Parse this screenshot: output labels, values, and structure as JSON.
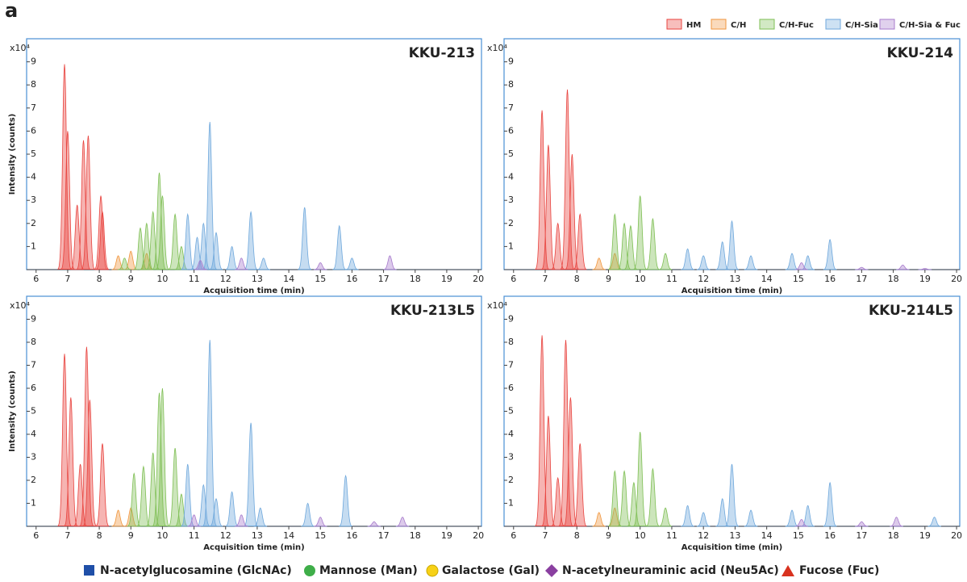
{
  "panel_label": "a",
  "glycan_legend": [
    "N-acetylglucosamine (GlcNAc)",
    "Mannose (Man)",
    "Galactose (Gal)",
    "N-acetylneuraminic acid (Neu5Ac)",
    "Fucose (Fuc)"
  ],
  "chart_data": [
    {
      "type": "area",
      "title": "KKU-213",
      "y_multiplier": "x10⁴",
      "y_label": "Intensity (counts)",
      "x_label": "Acquisition time (min)",
      "xlim": [
        5.7,
        20.1
      ],
      "ylim": [
        0,
        10
      ],
      "xticks": [
        6,
        7,
        8,
        9,
        10,
        11,
        12,
        13,
        14,
        15,
        16,
        17,
        18,
        19,
        20
      ],
      "yticks": [
        1,
        2,
        3,
        4,
        5,
        6,
        7,
        8,
        9
      ],
      "series": [
        {
          "name": "HM",
          "color": "#e8443f",
          "x": [
            6.9,
            7.0,
            7.3,
            7.5,
            7.65,
            8.05,
            8.1
          ],
          "values": [
            8.9,
            6.0,
            2.8,
            5.6,
            5.8,
            3.2,
            2.5
          ]
        },
        {
          "name": "C/H",
          "color": "#f0963e",
          "x": [
            8.6,
            9.0,
            9.5
          ],
          "values": [
            0.6,
            0.8,
            0.7
          ]
        },
        {
          "name": "C/H-Fuc",
          "color": "#7fbf55",
          "x": [
            8.8,
            9.3,
            9.5,
            9.7,
            9.9,
            10.0,
            10.4,
            10.6
          ],
          "values": [
            0.5,
            1.8,
            2.0,
            2.5,
            4.2,
            3.2,
            2.4,
            1.0
          ]
        },
        {
          "name": "C/H-Sia",
          "color": "#6fa8dc",
          "x": [
            10.8,
            11.1,
            11.3,
            11.5,
            11.7,
            12.2,
            12.8,
            13.2,
            14.5,
            15.6,
            16.0
          ],
          "values": [
            2.4,
            1.4,
            2.0,
            6.4,
            1.6,
            1.0,
            2.5,
            0.5,
            2.7,
            1.9,
            0.5
          ]
        },
        {
          "name": "C/H-Sia & Fuc",
          "color": "#a77bcc",
          "x": [
            11.2,
            12.5,
            15.0,
            17.2
          ],
          "values": [
            0.4,
            0.5,
            0.3,
            0.6
          ]
        }
      ]
    },
    {
      "type": "area",
      "title": "KKU-214",
      "y_multiplier": "x10⁴",
      "x_label": "Acquisition time (min)",
      "xlim": [
        5.7,
        20.1
      ],
      "ylim": [
        0,
        10
      ],
      "xticks": [
        6,
        7,
        8,
        9,
        10,
        11,
        12,
        13,
        14,
        15,
        16,
        17,
        18,
        19,
        20
      ],
      "yticks": [
        1,
        2,
        3,
        4,
        5,
        6,
        7,
        8,
        9
      ],
      "series": [
        {
          "name": "HM",
          "color": "#e8443f",
          "x": [
            6.9,
            7.1,
            7.4,
            7.7,
            7.85,
            8.1
          ],
          "values": [
            6.9,
            5.4,
            2.0,
            7.8,
            5.0,
            2.4
          ]
        },
        {
          "name": "C/H",
          "color": "#f0963e",
          "x": [
            8.7,
            9.2
          ],
          "values": [
            0.5,
            0.7
          ]
        },
        {
          "name": "C/H-Fuc",
          "color": "#7fbf55",
          "x": [
            9.2,
            9.5,
            9.7,
            10.0,
            10.4,
            10.8
          ],
          "values": [
            2.4,
            2.0,
            1.9,
            3.2,
            2.2,
            0.7
          ]
        },
        {
          "name": "C/H-Sia",
          "color": "#6fa8dc",
          "x": [
            11.5,
            12.0,
            12.6,
            12.9,
            13.5,
            14.8,
            15.3,
            16.0
          ],
          "values": [
            0.9,
            0.6,
            1.2,
            2.1,
            0.6,
            0.7,
            0.6,
            1.3
          ]
        },
        {
          "name": "C/H-Sia & Fuc",
          "color": "#a77bcc",
          "x": [
            15.1,
            17.0,
            18.3,
            19.0
          ],
          "values": [
            0.3,
            0.1,
            0.2,
            0.05
          ]
        }
      ]
    },
    {
      "type": "area",
      "title": "KKU-213L5",
      "y_multiplier": "x10⁴",
      "y_label": "Intensity (counts)",
      "x_label": "Acquisition time (min)",
      "xlim": [
        5.7,
        20.1
      ],
      "ylim": [
        0,
        10
      ],
      "xticks": [
        6,
        7,
        8,
        9,
        10,
        11,
        12,
        13,
        14,
        15,
        16,
        17,
        18,
        19,
        20
      ],
      "yticks": [
        1,
        2,
        3,
        4,
        5,
        6,
        7,
        8,
        9
      ],
      "series": [
        {
          "name": "HM",
          "color": "#e8443f",
          "x": [
            6.9,
            7.1,
            7.4,
            7.6,
            7.7,
            8.1
          ],
          "values": [
            7.5,
            5.6,
            2.7,
            7.8,
            5.5,
            3.6
          ]
        },
        {
          "name": "C/H",
          "color": "#f0963e",
          "x": [
            8.6,
            9.0
          ],
          "values": [
            0.7,
            0.8
          ]
        },
        {
          "name": "C/H-Fuc",
          "color": "#7fbf55",
          "x": [
            9.1,
            9.4,
            9.7,
            9.9,
            10.0,
            10.4,
            10.6
          ],
          "values": [
            2.3,
            2.6,
            3.2,
            5.8,
            6.0,
            3.4,
            1.4
          ]
        },
        {
          "name": "C/H-Sia",
          "color": "#6fa8dc",
          "x": [
            10.8,
            11.3,
            11.5,
            11.7,
            12.2,
            12.8,
            13.1,
            14.6,
            15.8
          ],
          "values": [
            2.7,
            1.8,
            8.1,
            1.2,
            1.5,
            4.5,
            0.8,
            1.0,
            2.2
          ]
        },
        {
          "name": "C/H-Sia & Fuc",
          "color": "#a77bcc",
          "x": [
            11.0,
            12.5,
            15.0,
            16.7,
            17.6
          ],
          "values": [
            0.5,
            0.5,
            0.4,
            0.2,
            0.4
          ]
        }
      ]
    },
    {
      "type": "area",
      "title": "KKU-214L5",
      "y_multiplier": "x10⁴",
      "x_label": "Acquisition time (min)",
      "xlim": [
        5.7,
        20.1
      ],
      "ylim": [
        0,
        10
      ],
      "xticks": [
        6,
        7,
        8,
        9,
        10,
        11,
        12,
        13,
        14,
        15,
        16,
        17,
        18,
        19,
        20
      ],
      "yticks": [
        1,
        2,
        3,
        4,
        5,
        6,
        7,
        8,
        9
      ],
      "series": [
        {
          "name": "HM",
          "color": "#e8443f",
          "x": [
            6.9,
            7.1,
            7.4,
            7.65,
            7.8,
            8.1
          ],
          "values": [
            8.3,
            4.8,
            2.1,
            8.1,
            5.6,
            3.6
          ]
        },
        {
          "name": "C/H",
          "color": "#f0963e",
          "x": [
            8.7,
            9.2
          ],
          "values": [
            0.6,
            0.8
          ]
        },
        {
          "name": "C/H-Fuc",
          "color": "#7fbf55",
          "x": [
            9.2,
            9.5,
            9.8,
            10.0,
            10.4,
            10.8
          ],
          "values": [
            2.4,
            2.4,
            1.9,
            4.1,
            2.5,
            0.8
          ]
        },
        {
          "name": "C/H-Sia",
          "color": "#6fa8dc",
          "x": [
            11.5,
            12.0,
            12.6,
            12.9,
            13.5,
            14.8,
            15.3,
            16.0,
            19.3
          ],
          "values": [
            0.9,
            0.6,
            1.2,
            2.7,
            0.7,
            0.7,
            0.9,
            1.9,
            0.4
          ]
        },
        {
          "name": "C/H-Sia & Fuc",
          "color": "#a77bcc",
          "x": [
            15.1,
            17.0,
            18.1
          ],
          "values": [
            0.3,
            0.2,
            0.4
          ]
        }
      ]
    }
  ]
}
